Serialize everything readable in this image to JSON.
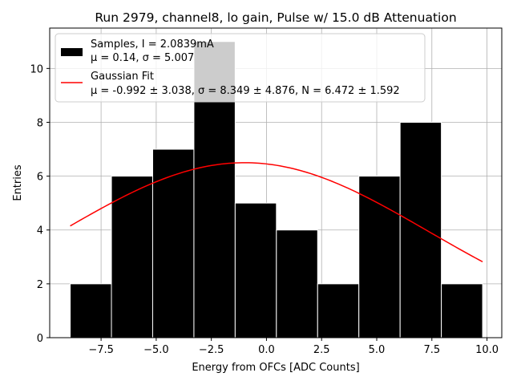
{
  "chart_data": {
    "type": "bar",
    "title": "Run 2979, channel8, lo gain, Pulse w/ 15.0 dB Attenuation",
    "xlabel": "Energy from OFCs [ADC Counts]",
    "ylabel": "Entries",
    "xlim": [
      -9.83,
      10.67
    ],
    "ylim": [
      0,
      11.5
    ],
    "xticks": [
      -7.5,
      -5.0,
      -2.5,
      0.0,
      2.5,
      5.0,
      7.5,
      10.0
    ],
    "xtick_labels": [
      "−7.5",
      "−5.0",
      "−2.5",
      "0.0",
      "2.5",
      "5.0",
      "7.5",
      "10.0"
    ],
    "yticks": [
      0,
      2,
      4,
      6,
      8,
      10
    ],
    "ytick_labels": [
      "0",
      "2",
      "4",
      "6",
      "8",
      "10"
    ],
    "grid": true,
    "bin_edges": [
      -8.9,
      -7.03,
      -5.16,
      -3.29,
      -1.42,
      0.45,
      2.32,
      4.19,
      6.06,
      7.93,
      9.8
    ],
    "values": [
      2,
      6,
      7,
      11,
      5,
      4,
      2,
      6,
      8,
      2
    ],
    "fit": {
      "amplitude": 6.5,
      "mean": -0.992,
      "sigma": 8.349,
      "x_range": [
        -8.9,
        9.8
      ]
    },
    "legend": {
      "placement": "top-left",
      "entries": [
        {
          "kind": "patch",
          "color": "#000000",
          "line1": "Samples, I = 2.0839mA",
          "line2": "μ = 0.14, σ = 5.007"
        },
        {
          "kind": "line",
          "color": "#ff0000",
          "line1": "Gaussian Fit",
          "line2": "μ = -0.992 ± 3.038, σ = 8.349 ± 4.876, N = 6.472 ± 1.592"
        }
      ]
    }
  }
}
